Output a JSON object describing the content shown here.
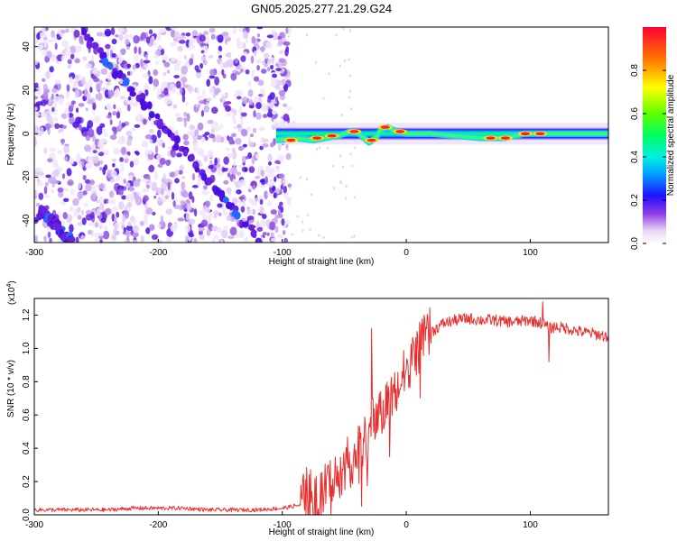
{
  "title": "GN05.2025.277.21.29.G24",
  "chart_data": [
    {
      "type": "heatmap",
      "title": "GN05.2025.277.21.29.G24",
      "xlabel": "Height of straight line (km)",
      "ylabel": "Frequency (Hz)",
      "xlim": [
        -300,
        163
      ],
      "ylim": [
        -50,
        49
      ],
      "xticks": [
        -300,
        -200,
        -100,
        0,
        100
      ],
      "yticks": [
        -40,
        -20,
        0,
        20,
        40
      ],
      "colorbar": {
        "label": "Normalized spectral amplitude",
        "range": [
          0.0,
          1.0
        ],
        "ticks": [
          "0.0",
          "0.2",
          "0.4",
          "0.6",
          "0.8"
        ],
        "tick_values": [
          0.0,
          0.2,
          0.4,
          0.6,
          0.8
        ],
        "colormap": "rainbow (white to violet to blue to cyan to green to yellow to red)"
      },
      "features": {
        "noise_region_x": [
          -300,
          -100
        ],
        "slanted_tracks": [
          {
            "x0": -262,
            "f0": 48,
            "x1": -118,
            "f1": -50
          },
          {
            "x0": -295,
            "f0": -35,
            "x1": -270,
            "f1": -50
          }
        ],
        "signal_band_x": [
          -105,
          163
        ],
        "signal_center_freq": 0,
        "signal_center_curve": [
          [
            -105,
            -3
          ],
          [
            -90,
            -2
          ],
          [
            -75,
            -3
          ],
          [
            -65,
            -2
          ],
          [
            -55,
            -1
          ],
          [
            -45,
            1
          ],
          [
            -38,
            0
          ],
          [
            -30,
            -4
          ],
          [
            -25,
            -2
          ],
          [
            -20,
            2
          ],
          [
            -15,
            3
          ],
          [
            -8,
            1
          ],
          [
            0,
            0
          ],
          [
            20,
            0
          ],
          [
            60,
            -2
          ],
          [
            80,
            -2
          ],
          [
            95,
            0
          ],
          [
            110,
            0
          ],
          [
            130,
            0
          ],
          [
            163,
            0
          ]
        ]
      }
    },
    {
      "type": "line",
      "xlabel": "Height of straight line (km)",
      "ylabel": "SNR (10 * v/v)",
      "y_multiplier": "(x10",
      "y_multiplier_exp": "4",
      "xlim": [
        -300,
        163
      ],
      "ylim": [
        0.0,
        1.3
      ],
      "xticks": [
        -300,
        -200,
        -100,
        0,
        100
      ],
      "yticks": [
        "0.0",
        "0.2",
        "0.4",
        "0.6",
        "0.8",
        "1.0",
        "1.2"
      ],
      "ytick_values": [
        0.0,
        0.2,
        0.4,
        0.6,
        0.8,
        1.0,
        1.2
      ],
      "series": [
        {
          "name": "SNR",
          "color": "#e8302f",
          "x": [
            -300,
            -280,
            -260,
            -240,
            -220,
            -200,
            -180,
            -160,
            -140,
            -120,
            -100,
            -85,
            -80,
            -75,
            -70,
            -65,
            -60,
            -55,
            -50,
            -45,
            -40,
            -35,
            -30,
            -25,
            -20,
            -15,
            -10,
            -5,
            0,
            10,
            20,
            30,
            40,
            50,
            60,
            70,
            80,
            90,
            100,
            110,
            115,
            120,
            130,
            140,
            150,
            163
          ],
          "values": [
            0.03,
            0.03,
            0.03,
            0.03,
            0.04,
            0.04,
            0.04,
            0.03,
            0.03,
            0.03,
            0.04,
            0.06,
            0.14,
            0.1,
            0.08,
            0.16,
            0.2,
            0.24,
            0.3,
            0.32,
            0.38,
            0.42,
            0.5,
            0.58,
            0.62,
            0.68,
            0.72,
            0.78,
            0.88,
            1.0,
            1.1,
            1.15,
            1.17,
            1.18,
            1.17,
            1.17,
            1.16,
            1.16,
            1.17,
            1.15,
            1.12,
            1.13,
            1.12,
            1.1,
            1.09,
            1.07
          ]
        }
      ],
      "annotations": [
        {
          "x": -28,
          "value": 1.12,
          "kind": "spike"
        },
        {
          "x": 110,
          "value": 1.28,
          "kind": "spike"
        },
        {
          "x": 115,
          "value": 0.92,
          "kind": "dip"
        }
      ]
    }
  ]
}
